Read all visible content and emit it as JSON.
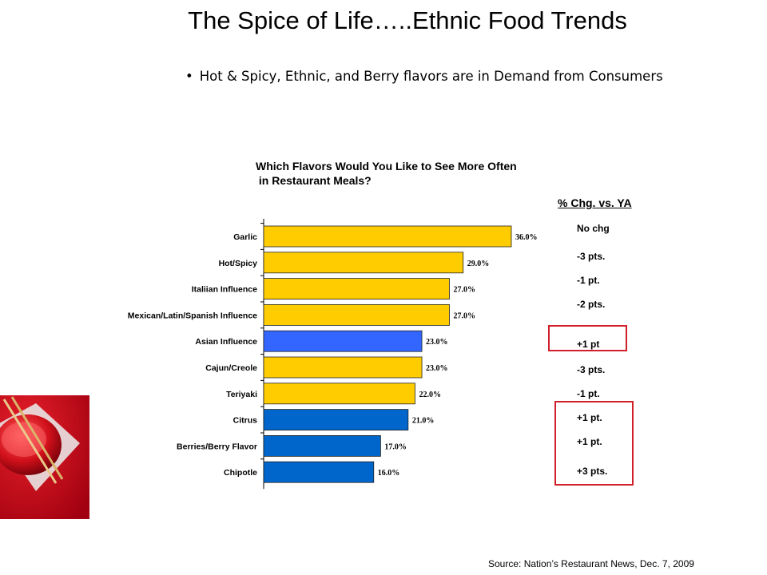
{
  "slide": {
    "title": "The Spice of Life…..Ethnic Food Trends",
    "bullet": "Hot & Spicy, Ethnic, and Berry flavors are in Demand from Consumers",
    "source": "Source: Nation’s Restaurant News, Dec. 7, 2009"
  },
  "chart_data": {
    "type": "bar",
    "orientation": "horizontal",
    "title": "Which Flavors Would You Like to See More Often\n in Restaurant Meals?",
    "categories": [
      "Garlic",
      "Hot/Spicy",
      "Italiian Influence",
      "Mexican/Latin/Spanish Influence",
      "Asian Influence",
      "Cajun/Creole",
      "Teriyaki",
      "Citrus",
      "Berries/Berry Flavor",
      "Chipotle"
    ],
    "values": [
      36.0,
      29.0,
      27.0,
      27.0,
      23.0,
      23.0,
      22.0,
      21.0,
      17.0,
      16.0
    ],
    "value_labels": [
      "36.0%",
      "29.0%",
      "27.0%",
      "27.0%",
      "23.0%",
      "23.0%",
      "22.0%",
      "21.0%",
      "17.0%",
      "16.0%"
    ],
    "bar_colors": [
      "#ffcc00",
      "#ffcc00",
      "#ffcc00",
      "#ffcc00",
      "#3366ff",
      "#ffcc00",
      "#ffcc00",
      "#0066cc",
      "#0066cc",
      "#0066cc"
    ],
    "xlim": [
      0,
      36
    ],
    "grid": false,
    "legend": "none"
  },
  "change_panel": {
    "header": "% Chg. vs. YA",
    "items": [
      "No chg",
      "-3 pts.",
      "-1 pt.",
      "-2 pts.",
      "+1 pt",
      "-3 pts.",
      "-1 pt.",
      "+1 pt.",
      "+1 pt.",
      "+3 pts."
    ],
    "highlight_color": "#d0202a"
  },
  "colors": {
    "yellow": "#ffcc00",
    "blue_bright": "#3366ff",
    "blue_dark": "#0066cc",
    "red_accent": "#d0202a"
  }
}
